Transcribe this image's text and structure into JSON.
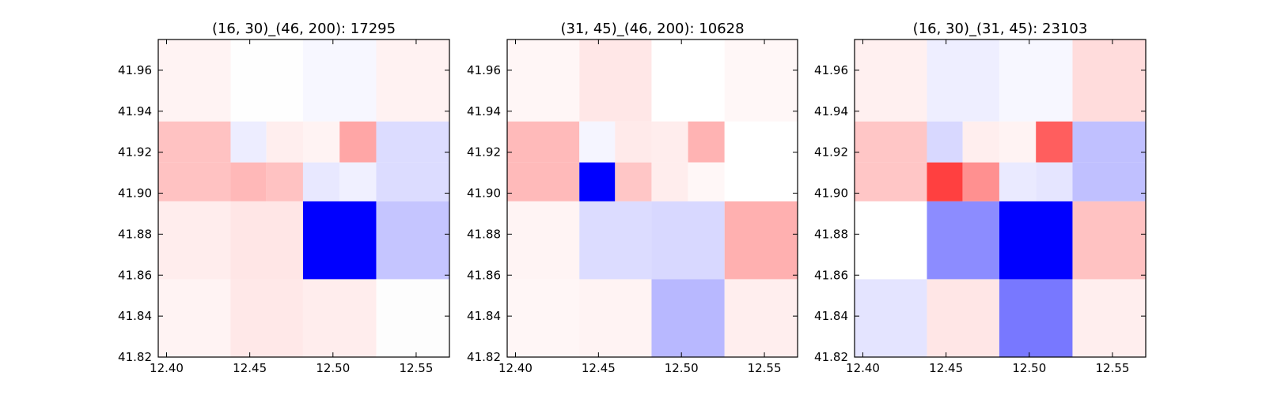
{
  "chart_data": [
    {
      "type": "heatmap",
      "title": "(16, 30)_(46, 200): 17295",
      "xlim": [
        12.395,
        12.57
      ],
      "ylim": [
        41.82,
        41.975
      ],
      "x_ticks": [
        "12.40",
        "12.45",
        "12.50",
        "12.55"
      ],
      "y_ticks": [
        "41.84",
        "41.86",
        "41.88",
        "41.90",
        "41.92",
        "41.94",
        "41.96"
      ],
      "cells": [
        {
          "x": [
            12.395,
            12.4385
          ],
          "y": [
            41.935,
            41.975
          ],
          "color": "#fff3f3"
        },
        {
          "x": [
            12.4385,
            12.482
          ],
          "y": [
            41.935,
            41.975
          ],
          "color": "#fefefe"
        },
        {
          "x": [
            12.482,
            12.526
          ],
          "y": [
            41.935,
            41.975
          ],
          "color": "#f7f7ff"
        },
        {
          "x": [
            12.526,
            12.57
          ],
          "y": [
            41.935,
            41.975
          ],
          "color": "#fff2f2"
        },
        {
          "x": [
            12.395,
            12.4385
          ],
          "y": [
            41.915,
            41.935
          ],
          "color": "#ffc2c2"
        },
        {
          "x": [
            12.4385,
            12.46
          ],
          "y": [
            41.915,
            41.935
          ],
          "color": "#ededff"
        },
        {
          "x": [
            12.46,
            12.482
          ],
          "y": [
            41.915,
            41.935
          ],
          "color": "#ffeeee"
        },
        {
          "x": [
            12.482,
            12.504
          ],
          "y": [
            41.915,
            41.935
          ],
          "color": "#fff3f3"
        },
        {
          "x": [
            12.504,
            12.526
          ],
          "y": [
            41.915,
            41.935
          ],
          "color": "#ffa6a6"
        },
        {
          "x": [
            12.526,
            12.57
          ],
          "y": [
            41.915,
            41.935
          ],
          "color": "#dcdcff"
        },
        {
          "x": [
            12.395,
            12.4385
          ],
          "y": [
            41.896,
            41.915
          ],
          "color": "#ffc2c2"
        },
        {
          "x": [
            12.4385,
            12.46
          ],
          "y": [
            41.896,
            41.915
          ],
          "color": "#ffb8b8"
        },
        {
          "x": [
            12.46,
            12.482
          ],
          "y": [
            41.896,
            41.915
          ],
          "color": "#ffc2c2"
        },
        {
          "x": [
            12.482,
            12.504
          ],
          "y": [
            41.896,
            41.915
          ],
          "color": "#e8e8ff"
        },
        {
          "x": [
            12.504,
            12.526
          ],
          "y": [
            41.896,
            41.915
          ],
          "color": "#f0f0ff"
        },
        {
          "x": [
            12.526,
            12.57
          ],
          "y": [
            41.896,
            41.915
          ],
          "color": "#dcdcff"
        },
        {
          "x": [
            12.395,
            12.4385
          ],
          "y": [
            41.858,
            41.896
          ],
          "color": "#ffeded"
        },
        {
          "x": [
            12.4385,
            12.482
          ],
          "y": [
            41.858,
            41.896
          ],
          "color": "#ffe6e6"
        },
        {
          "x": [
            12.482,
            12.526
          ],
          "y": [
            41.858,
            41.896
          ],
          "color": "#0000ff"
        },
        {
          "x": [
            12.526,
            12.57
          ],
          "y": [
            41.858,
            41.896
          ],
          "color": "#c5c5ff"
        },
        {
          "x": [
            12.395,
            12.4385
          ],
          "y": [
            41.82,
            41.858
          ],
          "color": "#fff3f3"
        },
        {
          "x": [
            12.4385,
            12.482
          ],
          "y": [
            41.82,
            41.858
          ],
          "color": "#ffe8e8"
        },
        {
          "x": [
            12.482,
            12.526
          ],
          "y": [
            41.82,
            41.858
          ],
          "color": "#ffeded"
        },
        {
          "x": [
            12.526,
            12.57
          ],
          "y": [
            41.82,
            41.858
          ],
          "color": "#fdfdfd"
        }
      ]
    },
    {
      "type": "heatmap",
      "title": "(31, 45)_(46, 200): 10628",
      "xlim": [
        12.395,
        12.57
      ],
      "ylim": [
        41.82,
        41.975
      ],
      "x_ticks": [
        "12.40",
        "12.45",
        "12.50",
        "12.55"
      ],
      "y_ticks": [
        "41.84",
        "41.86",
        "41.88",
        "41.90",
        "41.92",
        "41.94",
        "41.96"
      ],
      "cells": [
        {
          "x": [
            12.395,
            12.4385
          ],
          "y": [
            41.935,
            41.975
          ],
          "color": "#fff6f6"
        },
        {
          "x": [
            12.4385,
            12.482
          ],
          "y": [
            41.935,
            41.975
          ],
          "color": "#ffe7e7"
        },
        {
          "x": [
            12.482,
            12.526
          ],
          "y": [
            41.935,
            41.975
          ],
          "color": "#ffffff"
        },
        {
          "x": [
            12.526,
            12.57
          ],
          "y": [
            41.935,
            41.975
          ],
          "color": "#fff7f7"
        },
        {
          "x": [
            12.395,
            12.4385
          ],
          "y": [
            41.915,
            41.935
          ],
          "color": "#ffbaba"
        },
        {
          "x": [
            12.4385,
            12.46
          ],
          "y": [
            41.915,
            41.935
          ],
          "color": "#f5f5ff"
        },
        {
          "x": [
            12.46,
            12.482
          ],
          "y": [
            41.915,
            41.935
          ],
          "color": "#ffeaea"
        },
        {
          "x": [
            12.482,
            12.504
          ],
          "y": [
            41.915,
            41.935
          ],
          "color": "#ffeded"
        },
        {
          "x": [
            12.504,
            12.526
          ],
          "y": [
            41.915,
            41.935
          ],
          "color": "#ffb3b3"
        },
        {
          "x": [
            12.526,
            12.57
          ],
          "y": [
            41.915,
            41.935
          ],
          "color": "#ffffff"
        },
        {
          "x": [
            12.395,
            12.4385
          ],
          "y": [
            41.896,
            41.915
          ],
          "color": "#ffbaba"
        },
        {
          "x": [
            12.4385,
            12.46
          ],
          "y": [
            41.896,
            41.915
          ],
          "color": "#0000ff"
        },
        {
          "x": [
            12.46,
            12.482
          ],
          "y": [
            41.896,
            41.915
          ],
          "color": "#ffc6c6"
        },
        {
          "x": [
            12.482,
            12.504
          ],
          "y": [
            41.896,
            41.915
          ],
          "color": "#ffeded"
        },
        {
          "x": [
            12.504,
            12.526
          ],
          "y": [
            41.896,
            41.915
          ],
          "color": "#fff7f7"
        },
        {
          "x": [
            12.526,
            12.57
          ],
          "y": [
            41.896,
            41.915
          ],
          "color": "#ffffff"
        },
        {
          "x": [
            12.395,
            12.4385
          ],
          "y": [
            41.858,
            41.896
          ],
          "color": "#fff4f4"
        },
        {
          "x": [
            12.4385,
            12.482
          ],
          "y": [
            41.858,
            41.896
          ],
          "color": "#dcdcff"
        },
        {
          "x": [
            12.482,
            12.526
          ],
          "y": [
            41.858,
            41.896
          ],
          "color": "#d8d8ff"
        },
        {
          "x": [
            12.526,
            12.57
          ],
          "y": [
            41.858,
            41.896
          ],
          "color": "#ffb0b0"
        },
        {
          "x": [
            12.395,
            12.4385
          ],
          "y": [
            41.82,
            41.858
          ],
          "color": "#fff6f6"
        },
        {
          "x": [
            12.4385,
            12.482
          ],
          "y": [
            41.82,
            41.858
          ],
          "color": "#fff3f3"
        },
        {
          "x": [
            12.482,
            12.526
          ],
          "y": [
            41.82,
            41.858
          ],
          "color": "#b8b8ff"
        },
        {
          "x": [
            12.526,
            12.57
          ],
          "y": [
            41.82,
            41.858
          ],
          "color": "#ffeeee"
        }
      ]
    },
    {
      "type": "heatmap",
      "title": "(16, 30)_(31, 45): 23103",
      "xlim": [
        12.395,
        12.57
      ],
      "ylim": [
        41.82,
        41.975
      ],
      "x_ticks": [
        "12.40",
        "12.45",
        "12.50",
        "12.55"
      ],
      "y_ticks": [
        "41.84",
        "41.86",
        "41.88",
        "41.90",
        "41.92",
        "41.94",
        "41.96"
      ],
      "cells": [
        {
          "x": [
            12.395,
            12.4385
          ],
          "y": [
            41.935,
            41.975
          ],
          "color": "#fff0f0"
        },
        {
          "x": [
            12.4385,
            12.482
          ],
          "y": [
            41.935,
            41.975
          ],
          "color": "#eeeeff"
        },
        {
          "x": [
            12.482,
            12.526
          ],
          "y": [
            41.935,
            41.975
          ],
          "color": "#f7f7ff"
        },
        {
          "x": [
            12.526,
            12.57
          ],
          "y": [
            41.935,
            41.975
          ],
          "color": "#ffdcdc"
        },
        {
          "x": [
            12.395,
            12.4385
          ],
          "y": [
            41.915,
            41.935
          ],
          "color": "#ffc6c6"
        },
        {
          "x": [
            12.4385,
            12.46
          ],
          "y": [
            41.915,
            41.935
          ],
          "color": "#d8d8ff"
        },
        {
          "x": [
            12.46,
            12.482
          ],
          "y": [
            41.915,
            41.935
          ],
          "color": "#ffeeee"
        },
        {
          "x": [
            12.482,
            12.504
          ],
          "y": [
            41.915,
            41.935
          ],
          "color": "#fff3f3"
        },
        {
          "x": [
            12.504,
            12.526
          ],
          "y": [
            41.915,
            41.935
          ],
          "color": "#ff5e5e"
        },
        {
          "x": [
            12.526,
            12.57
          ],
          "y": [
            41.915,
            41.935
          ],
          "color": "#c0c0ff"
        },
        {
          "x": [
            12.395,
            12.4385
          ],
          "y": [
            41.896,
            41.915
          ],
          "color": "#ffc6c6"
        },
        {
          "x": [
            12.4385,
            12.46
          ],
          "y": [
            41.896,
            41.915
          ],
          "color": "#ff4040"
        },
        {
          "x": [
            12.46,
            12.482
          ],
          "y": [
            41.896,
            41.915
          ],
          "color": "#ff9090"
        },
        {
          "x": [
            12.482,
            12.504
          ],
          "y": [
            41.896,
            41.915
          ],
          "color": "#eaeaff"
        },
        {
          "x": [
            12.504,
            12.526
          ],
          "y": [
            41.896,
            41.915
          ],
          "color": "#e5e5ff"
        },
        {
          "x": [
            12.526,
            12.57
          ],
          "y": [
            41.896,
            41.915
          ],
          "color": "#c0c0ff"
        },
        {
          "x": [
            12.395,
            12.4385
          ],
          "y": [
            41.858,
            41.896
          ],
          "color": "#ffffff"
        },
        {
          "x": [
            12.4385,
            12.482
          ],
          "y": [
            41.858,
            41.896
          ],
          "color": "#8c8cff"
        },
        {
          "x": [
            12.482,
            12.526
          ],
          "y": [
            41.858,
            41.896
          ],
          "color": "#0000ff"
        },
        {
          "x": [
            12.526,
            12.57
          ],
          "y": [
            41.858,
            41.896
          ],
          "color": "#ffc2c2"
        },
        {
          "x": [
            12.395,
            12.4385
          ],
          "y": [
            41.82,
            41.858
          ],
          "color": "#e4e4ff"
        },
        {
          "x": [
            12.4385,
            12.482
          ],
          "y": [
            41.82,
            41.858
          ],
          "color": "#ffe6e6"
        },
        {
          "x": [
            12.482,
            12.526
          ],
          "y": [
            41.82,
            41.858
          ],
          "color": "#7878ff"
        },
        {
          "x": [
            12.526,
            12.57
          ],
          "y": [
            41.82,
            41.858
          ],
          "color": "#ffeeee"
        }
      ]
    }
  ]
}
